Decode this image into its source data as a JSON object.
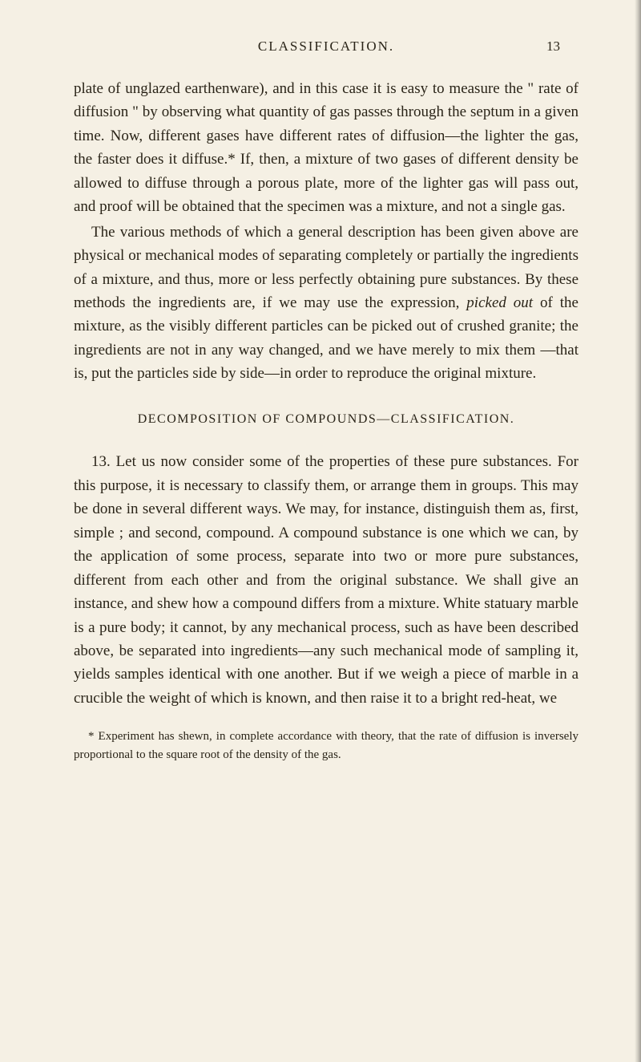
{
  "header": {
    "title": "CLASSIFICATION.",
    "page_number": "13"
  },
  "paragraphs": {
    "p1": "plate of unglazed earthenware), and in this case it is easy to measure the \" rate of diffusion \" by observing what quantity of gas passes through the septum in a given time. Now, different gases have different rates of diffusion—the lighter the gas, the faster does it diffuse.* If, then, a mixture of two gases of different density be allowed to diffuse through a porous plate, more of the lighter gas will pass out, and proof will be obtained that the specimen was a mixture, and not a single gas.",
    "p2_a": "The various methods of which a general description has been given above are physical or mechanical modes of separating completely or partially the ingredients of a mixture, and thus, more or less perfectly obtaining pure substances. By these methods the ingredients are, if we may use the expression, ",
    "p2_italic": "picked out",
    "p2_b": " of the mixture, as the visibly different particles can be picked out of crushed granite; the ingredients are not in any way changed, and we have merely to mix them —that is, put the particles side by side—in order to reproduce the original mixture.",
    "section_heading": "DECOMPOSITION OF COMPOUNDS—CLASSIFICATION.",
    "p3": "13. Let us now consider some of the properties of these pure substances. For this purpose, it is necessary to classify them, or arrange them in groups. This may be done in several different ways. We may, for instance, distinguish them as, first, simple ; and second, compound. A compound substance is one which we can, by the application of some process, separate into two or more pure substances, different from each other and from the original substance. We shall give an instance, and shew how a compound differs from a mixture. White statuary marble is a pure body; it cannot, by any mechanical process, such as have been described above, be separated into ingredients—any such mechanical mode of sampling it, yields samples identical with one another. But if we weigh a piece of marble in a crucible the weight of which is known, and then raise it to a bright red-heat, we",
    "footnote": "* Experiment has shewn, in complete accordance with theory, that the rate of diffusion is inversely proportional to the square root of the density of the gas."
  }
}
